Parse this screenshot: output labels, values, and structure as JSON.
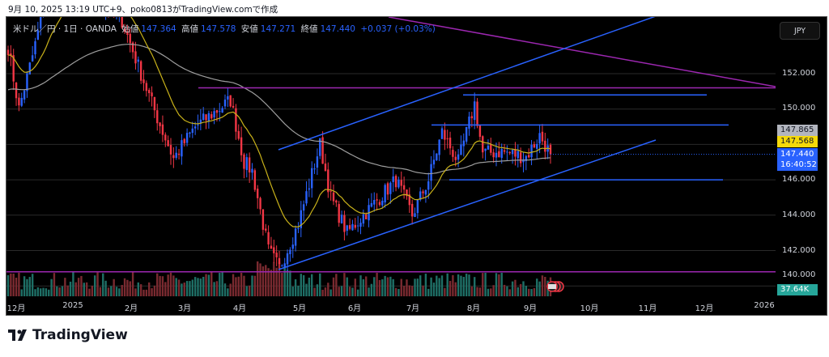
{
  "caption": "9月 10, 2025 13:19 UTC+9、poko0813がTradingView.comで作成",
  "legend": {
    "symbol": "米ドル／円 · 1日 · OANDA",
    "open_label": "始値",
    "open": "147.364",
    "high_label": "高値",
    "high": "147.578",
    "low_label": "安値",
    "low": "147.271",
    "close_label": "終値",
    "close": "147.440",
    "change": "+0.037 (+0.03%)"
  },
  "currency": "JPY",
  "price_ticks": [
    "152.000",
    "150.000",
    "146.000",
    "144.000",
    "142.000",
    "140.000"
  ],
  "price_labels": {
    "gray": "147.865",
    "yellow": "147.568",
    "last": "147.440",
    "countdown": "16:40:52",
    "volume": "37.64K"
  },
  "time_ticks": [
    "12月",
    "2025",
    "2月",
    "3月",
    "4月",
    "5月",
    "6月",
    "7月",
    "8月",
    "9月",
    "10月",
    "11月",
    "12月",
    "2026"
  ],
  "colors": {
    "up": "#2962ff",
    "down": "#f23645",
    "ma_fast": "#c9b21a",
    "ma_slow": "#9e9e9e",
    "drawing_blue": "#2962ff",
    "drawing_purple": "#9c27b0",
    "vol_up": "#1e6f66",
    "vol_down": "#7a2a30"
  },
  "brand": "TradingView",
  "chart_data": {
    "type": "candlestick",
    "symbol": "USDJPY",
    "ylim": [
      139.4,
      159
    ],
    "bars": 201,
    "anchor_closes": [
      [
        0,
        153.5
      ],
      [
        4,
        150
      ],
      [
        9,
        153
      ],
      [
        15,
        157
      ],
      [
        24,
        157.5
      ],
      [
        33,
        156
      ],
      [
        42,
        155
      ],
      [
        49,
        152
      ],
      [
        55,
        149.5
      ],
      [
        61,
        147.2
      ],
      [
        69,
        149
      ],
      [
        82,
        150.5
      ],
      [
        87,
        147
      ],
      [
        90,
        146.5
      ],
      [
        96,
        142
      ],
      [
        100,
        141
      ],
      [
        107,
        143.5
      ],
      [
        115,
        148
      ],
      [
        119,
        145
      ],
      [
        125,
        143
      ],
      [
        134,
        144.5
      ],
      [
        143,
        146
      ],
      [
        149,
        144
      ],
      [
        155,
        146
      ],
      [
        160,
        148.7
      ],
      [
        166,
        147
      ],
      [
        172,
        150.3
      ],
      [
        175,
        147.5
      ],
      [
        182,
        147.6
      ],
      [
        191,
        147.3
      ],
      [
        196,
        148.5
      ],
      [
        200,
        147.44
      ]
    ],
    "hlines": [
      {
        "price": 151.2,
        "color": "purple"
      },
      {
        "price": 140.8,
        "color": "purple"
      },
      {
        "price": 150.8,
        "color": "blue"
      },
      {
        "price": 149.1,
        "color": "blue"
      },
      {
        "price": 146.0,
        "color": "blue"
      }
    ]
  }
}
